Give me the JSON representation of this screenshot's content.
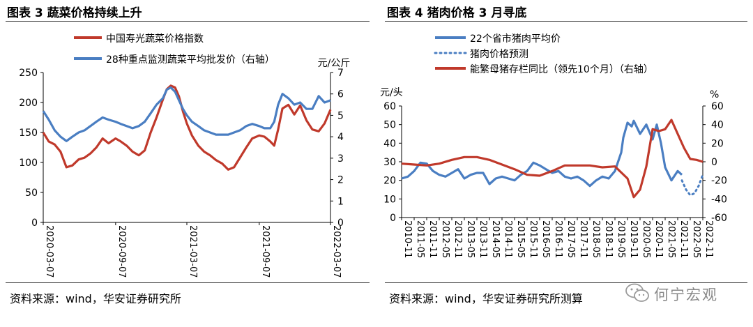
{
  "left": {
    "figure_title": "图表 3  蔬菜价格持续上升",
    "source": "资料来源：wind，华安证券研究所"
  },
  "right": {
    "figure_title": "图表 4  猪肉价格 3 月寻底",
    "source": "资料来源：wind，华安证券研究所测算"
  },
  "watermark": {
    "text": "何宁宏观",
    "icon": "wechat-icon"
  },
  "colors": {
    "red": "#c0392b",
    "blue": "#4a7ec2",
    "axis": "#000000"
  },
  "chart_data": [
    {
      "type": "line",
      "title": "",
      "ylabel_right": "元/公斤",
      "ylim": [
        0,
        250
      ],
      "ylim_right": [
        0,
        7
      ],
      "yticks": [
        "0",
        "50",
        "100",
        "150",
        "200",
        "250"
      ],
      "yticks_right": [
        "0",
        "1",
        "2",
        "3",
        "4",
        "5",
        "6",
        "7"
      ],
      "xticks": [
        "2020-03-07",
        "2020-09-07",
        "2021-03-07",
        "2021-09-07",
        "2022-03-07"
      ],
      "x_start": "2020-03-07",
      "x_end": "2022-03-07",
      "legend_position": "top",
      "series": [
        {
          "name": "中国寿光蔬菜价格指数",
          "axis": "left",
          "color": "#c0392b",
          "x": [
            "2020-03-07",
            "2020-03-21",
            "2020-04-05",
            "2020-04-20",
            "2020-05-05",
            "2020-05-20",
            "2020-06-05",
            "2020-06-20",
            "2020-07-05",
            "2020-07-20",
            "2020-08-05",
            "2020-08-20",
            "2020-09-07",
            "2020-09-20",
            "2020-10-05",
            "2020-10-20",
            "2020-11-05",
            "2020-11-20",
            "2020-12-05",
            "2020-12-20",
            "2021-01-05",
            "2021-01-15",
            "2021-01-25",
            "2021-02-05",
            "2021-02-15",
            "2021-02-25",
            "2021-03-07",
            "2021-03-20",
            "2021-04-05",
            "2021-04-20",
            "2021-05-05",
            "2021-05-20",
            "2021-06-05",
            "2021-06-20",
            "2021-07-05",
            "2021-07-20",
            "2021-08-05",
            "2021-08-20",
            "2021-09-07",
            "2021-09-20",
            "2021-10-05",
            "2021-10-15",
            "2021-10-25",
            "2021-11-05",
            "2021-11-20",
            "2021-12-05",
            "2021-12-20",
            "2022-01-05",
            "2022-01-20",
            "2022-02-05",
            "2022-02-20",
            "2022-03-07"
          ],
          "y": [
            150,
            135,
            130,
            118,
            92,
            95,
            105,
            108,
            115,
            125,
            140,
            132,
            140,
            135,
            128,
            118,
            112,
            120,
            150,
            175,
            205,
            222,
            228,
            225,
            210,
            185,
            165,
            145,
            128,
            118,
            112,
            104,
            98,
            88,
            92,
            108,
            125,
            140,
            145,
            143,
            135,
            128,
            155,
            190,
            196,
            180,
            195,
            170,
            155,
            152,
            165,
            188
          ]
        },
        {
          "name": "28种重点监测蔬菜平均批发价（右轴）",
          "axis": "right",
          "color": "#4a7ec2",
          "x": [
            "2020-03-07",
            "2020-03-21",
            "2020-04-05",
            "2020-04-20",
            "2020-05-05",
            "2020-05-20",
            "2020-06-05",
            "2020-06-20",
            "2020-07-05",
            "2020-07-20",
            "2020-08-05",
            "2020-08-20",
            "2020-09-07",
            "2020-09-20",
            "2020-10-05",
            "2020-10-20",
            "2020-11-05",
            "2020-11-20",
            "2020-12-05",
            "2020-12-20",
            "2021-01-05",
            "2021-01-15",
            "2021-01-25",
            "2021-02-05",
            "2021-02-15",
            "2021-02-25",
            "2021-03-07",
            "2021-03-20",
            "2021-04-05",
            "2021-04-20",
            "2021-05-05",
            "2021-05-20",
            "2021-06-05",
            "2021-06-20",
            "2021-07-05",
            "2021-07-20",
            "2021-08-05",
            "2021-08-20",
            "2021-09-07",
            "2021-09-20",
            "2021-10-05",
            "2021-10-15",
            "2021-10-25",
            "2021-11-05",
            "2021-11-20",
            "2021-12-05",
            "2021-12-20",
            "2022-01-05",
            "2022-01-20",
            "2022-02-05",
            "2022-02-20",
            "2022-03-07"
          ],
          "y": [
            5.2,
            4.8,
            4.3,
            4.0,
            3.8,
            4.0,
            4.2,
            4.3,
            4.5,
            4.7,
            4.9,
            4.8,
            4.7,
            4.6,
            4.5,
            4.4,
            4.5,
            4.7,
            5.1,
            5.5,
            5.8,
            6.2,
            6.3,
            6.1,
            5.7,
            5.3,
            5.0,
            4.7,
            4.5,
            4.3,
            4.2,
            4.1,
            4.1,
            4.1,
            4.2,
            4.3,
            4.5,
            4.6,
            4.5,
            4.4,
            4.4,
            4.7,
            5.5,
            6.0,
            5.8,
            5.5,
            5.6,
            5.3,
            5.3,
            5.9,
            5.6,
            5.7
          ]
        }
      ]
    },
    {
      "type": "line",
      "title": "",
      "ylabel": "元/头",
      "ylabel_right": "%",
      "ylim": [
        0,
        60
      ],
      "ylim_right": [
        -60,
        60
      ],
      "yticks": [
        "0",
        "10",
        "20",
        "30",
        "40",
        "50",
        "60"
      ],
      "yticks_right": [
        "-60",
        "-40",
        "-20",
        "0",
        "20",
        "40",
        "60"
      ],
      "xticks": [
        "2010-11",
        "2011-05",
        "2011-11",
        "2012-05",
        "2012-11",
        "2013-05",
        "2013-11",
        "2014-05",
        "2014-11",
        "2015-05",
        "2015-11",
        "2016-05",
        "2016-11",
        "2017-05",
        "2017-11",
        "2018-05",
        "2018-11",
        "2019-05",
        "2019-11",
        "2020-05",
        "2020-11",
        "2021-05",
        "2021-11",
        "2022-05",
        "2022-11"
      ],
      "legend_position": "top",
      "series": [
        {
          "name": "22个省市猪肉平均价",
          "axis": "left",
          "color": "#4a7ec2",
          "style": "solid",
          "x": [
            "2010-11",
            "2011-02",
            "2011-05",
            "2011-08",
            "2011-11",
            "2012-02",
            "2012-05",
            "2012-08",
            "2012-11",
            "2013-02",
            "2013-05",
            "2013-08",
            "2013-11",
            "2014-02",
            "2014-05",
            "2014-08",
            "2014-11",
            "2015-02",
            "2015-05",
            "2015-08",
            "2015-11",
            "2016-02",
            "2016-05",
            "2016-08",
            "2016-11",
            "2017-02",
            "2017-05",
            "2017-08",
            "2017-11",
            "2018-02",
            "2018-05",
            "2018-08",
            "2018-11",
            "2019-02",
            "2019-05",
            "2019-08",
            "2019-09",
            "2019-11",
            "2020-01",
            "2020-02",
            "2020-05",
            "2020-08",
            "2020-11",
            "2021-01",
            "2021-03",
            "2021-05",
            "2021-08",
            "2021-11",
            "2022-01"
          ],
          "y": [
            21,
            22,
            25,
            29.5,
            29,
            25,
            23,
            22,
            24,
            26,
            21,
            23,
            24,
            24,
            18,
            21,
            22,
            21,
            20,
            23,
            25,
            29.5,
            28,
            26,
            24,
            25,
            22,
            21,
            22,
            20,
            17,
            20,
            22,
            21,
            25,
            35,
            43,
            51,
            49,
            52,
            45,
            50,
            42,
            50,
            40,
            27,
            20,
            25,
            23
          ]
        },
        {
          "name": "猪肉价格预测",
          "axis": "left",
          "color": "#4a7ec2",
          "style": "dotted",
          "x": [
            "2022-01",
            "2022-03",
            "2022-05",
            "2022-07",
            "2022-09",
            "2022-11"
          ],
          "y": [
            20,
            15,
            12,
            13,
            17,
            23
          ]
        },
        {
          "name": "能繁母猪存栏同比（领先10个月）（右轴）",
          "axis": "right",
          "color": "#c0392b",
          "style": "solid",
          "x": [
            "2010-11",
            "2011-05",
            "2011-11",
            "2012-05",
            "2012-11",
            "2013-05",
            "2013-11",
            "2014-05",
            "2014-11",
            "2015-05",
            "2015-11",
            "2016-05",
            "2016-11",
            "2017-05",
            "2017-11",
            "2018-05",
            "2018-11",
            "2019-05",
            "2019-11",
            "2020-02",
            "2020-05",
            "2020-08",
            "2020-11",
            "2021-02",
            "2021-05",
            "2021-08",
            "2021-11",
            "2022-02",
            "2022-05",
            "2022-08",
            "2022-11"
          ],
          "y": [
            -2,
            -3,
            -4,
            -2,
            2,
            5,
            5,
            2,
            -3,
            -8,
            -14,
            -15,
            -10,
            -4,
            -4,
            -4,
            -6,
            -5,
            -18,
            -38,
            -30,
            -5,
            35,
            33,
            35,
            45,
            30,
            15,
            3,
            2,
            0
          ]
        }
      ]
    }
  ]
}
